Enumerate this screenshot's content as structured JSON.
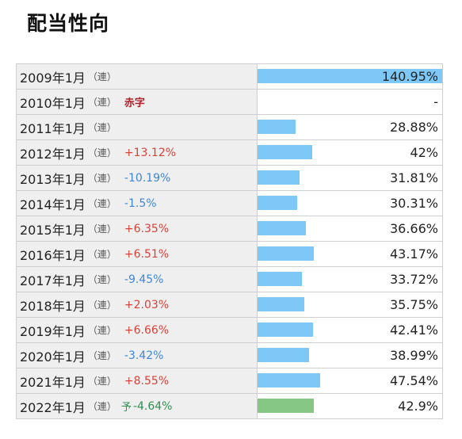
{
  "title": "配当性向",
  "consolidated_mark": "（連）",
  "forecast_mark": "予",
  "bar_max_percent": 140.95,
  "bar_colors": {
    "actual": "#7ec8f8",
    "forecast": "#86c784"
  },
  "rows": [
    {
      "period": "2009年1月",
      "change": "",
      "change_type": "",
      "ratio_value": 140.95,
      "ratio": "140.95%",
      "forecast": false
    },
    {
      "period": "2010年1月",
      "change": "赤字",
      "change_type": "deficit",
      "ratio_value": 0,
      "ratio": "-",
      "forecast": false
    },
    {
      "period": "2011年1月",
      "change": "",
      "change_type": "",
      "ratio_value": 28.88,
      "ratio": "28.88%",
      "forecast": false
    },
    {
      "period": "2012年1月",
      "change": "+13.12%",
      "change_type": "up",
      "ratio_value": 42,
      "ratio": "42%",
      "forecast": false
    },
    {
      "period": "2013年1月",
      "change": "-10.19%",
      "change_type": "down",
      "ratio_value": 31.81,
      "ratio": "31.81%",
      "forecast": false
    },
    {
      "period": "2014年1月",
      "change": "-1.5%",
      "change_type": "down",
      "ratio_value": 30.31,
      "ratio": "30.31%",
      "forecast": false
    },
    {
      "period": "2015年1月",
      "change": "+6.35%",
      "change_type": "up",
      "ratio_value": 36.66,
      "ratio": "36.66%",
      "forecast": false
    },
    {
      "period": "2016年1月",
      "change": "+6.51%",
      "change_type": "up",
      "ratio_value": 43.17,
      "ratio": "43.17%",
      "forecast": false
    },
    {
      "period": "2017年1月",
      "change": "-9.45%",
      "change_type": "down",
      "ratio_value": 33.72,
      "ratio": "33.72%",
      "forecast": false
    },
    {
      "period": "2018年1月",
      "change": "+2.03%",
      "change_type": "up",
      "ratio_value": 35.75,
      "ratio": "35.75%",
      "forecast": false
    },
    {
      "period": "2019年1月",
      "change": "+6.66%",
      "change_type": "up",
      "ratio_value": 42.41,
      "ratio": "42.41%",
      "forecast": false
    },
    {
      "period": "2020年1月",
      "change": "-3.42%",
      "change_type": "down",
      "ratio_value": 38.99,
      "ratio": "38.99%",
      "forecast": false
    },
    {
      "period": "2021年1月",
      "change": "+8.55%",
      "change_type": "up",
      "ratio_value": 47.54,
      "ratio": "47.54%",
      "forecast": false
    },
    {
      "period": "2022年1月",
      "change": "-4.64%",
      "change_type": "down",
      "ratio_value": 42.9,
      "ratio": "42.9%",
      "forecast": true
    }
  ]
}
